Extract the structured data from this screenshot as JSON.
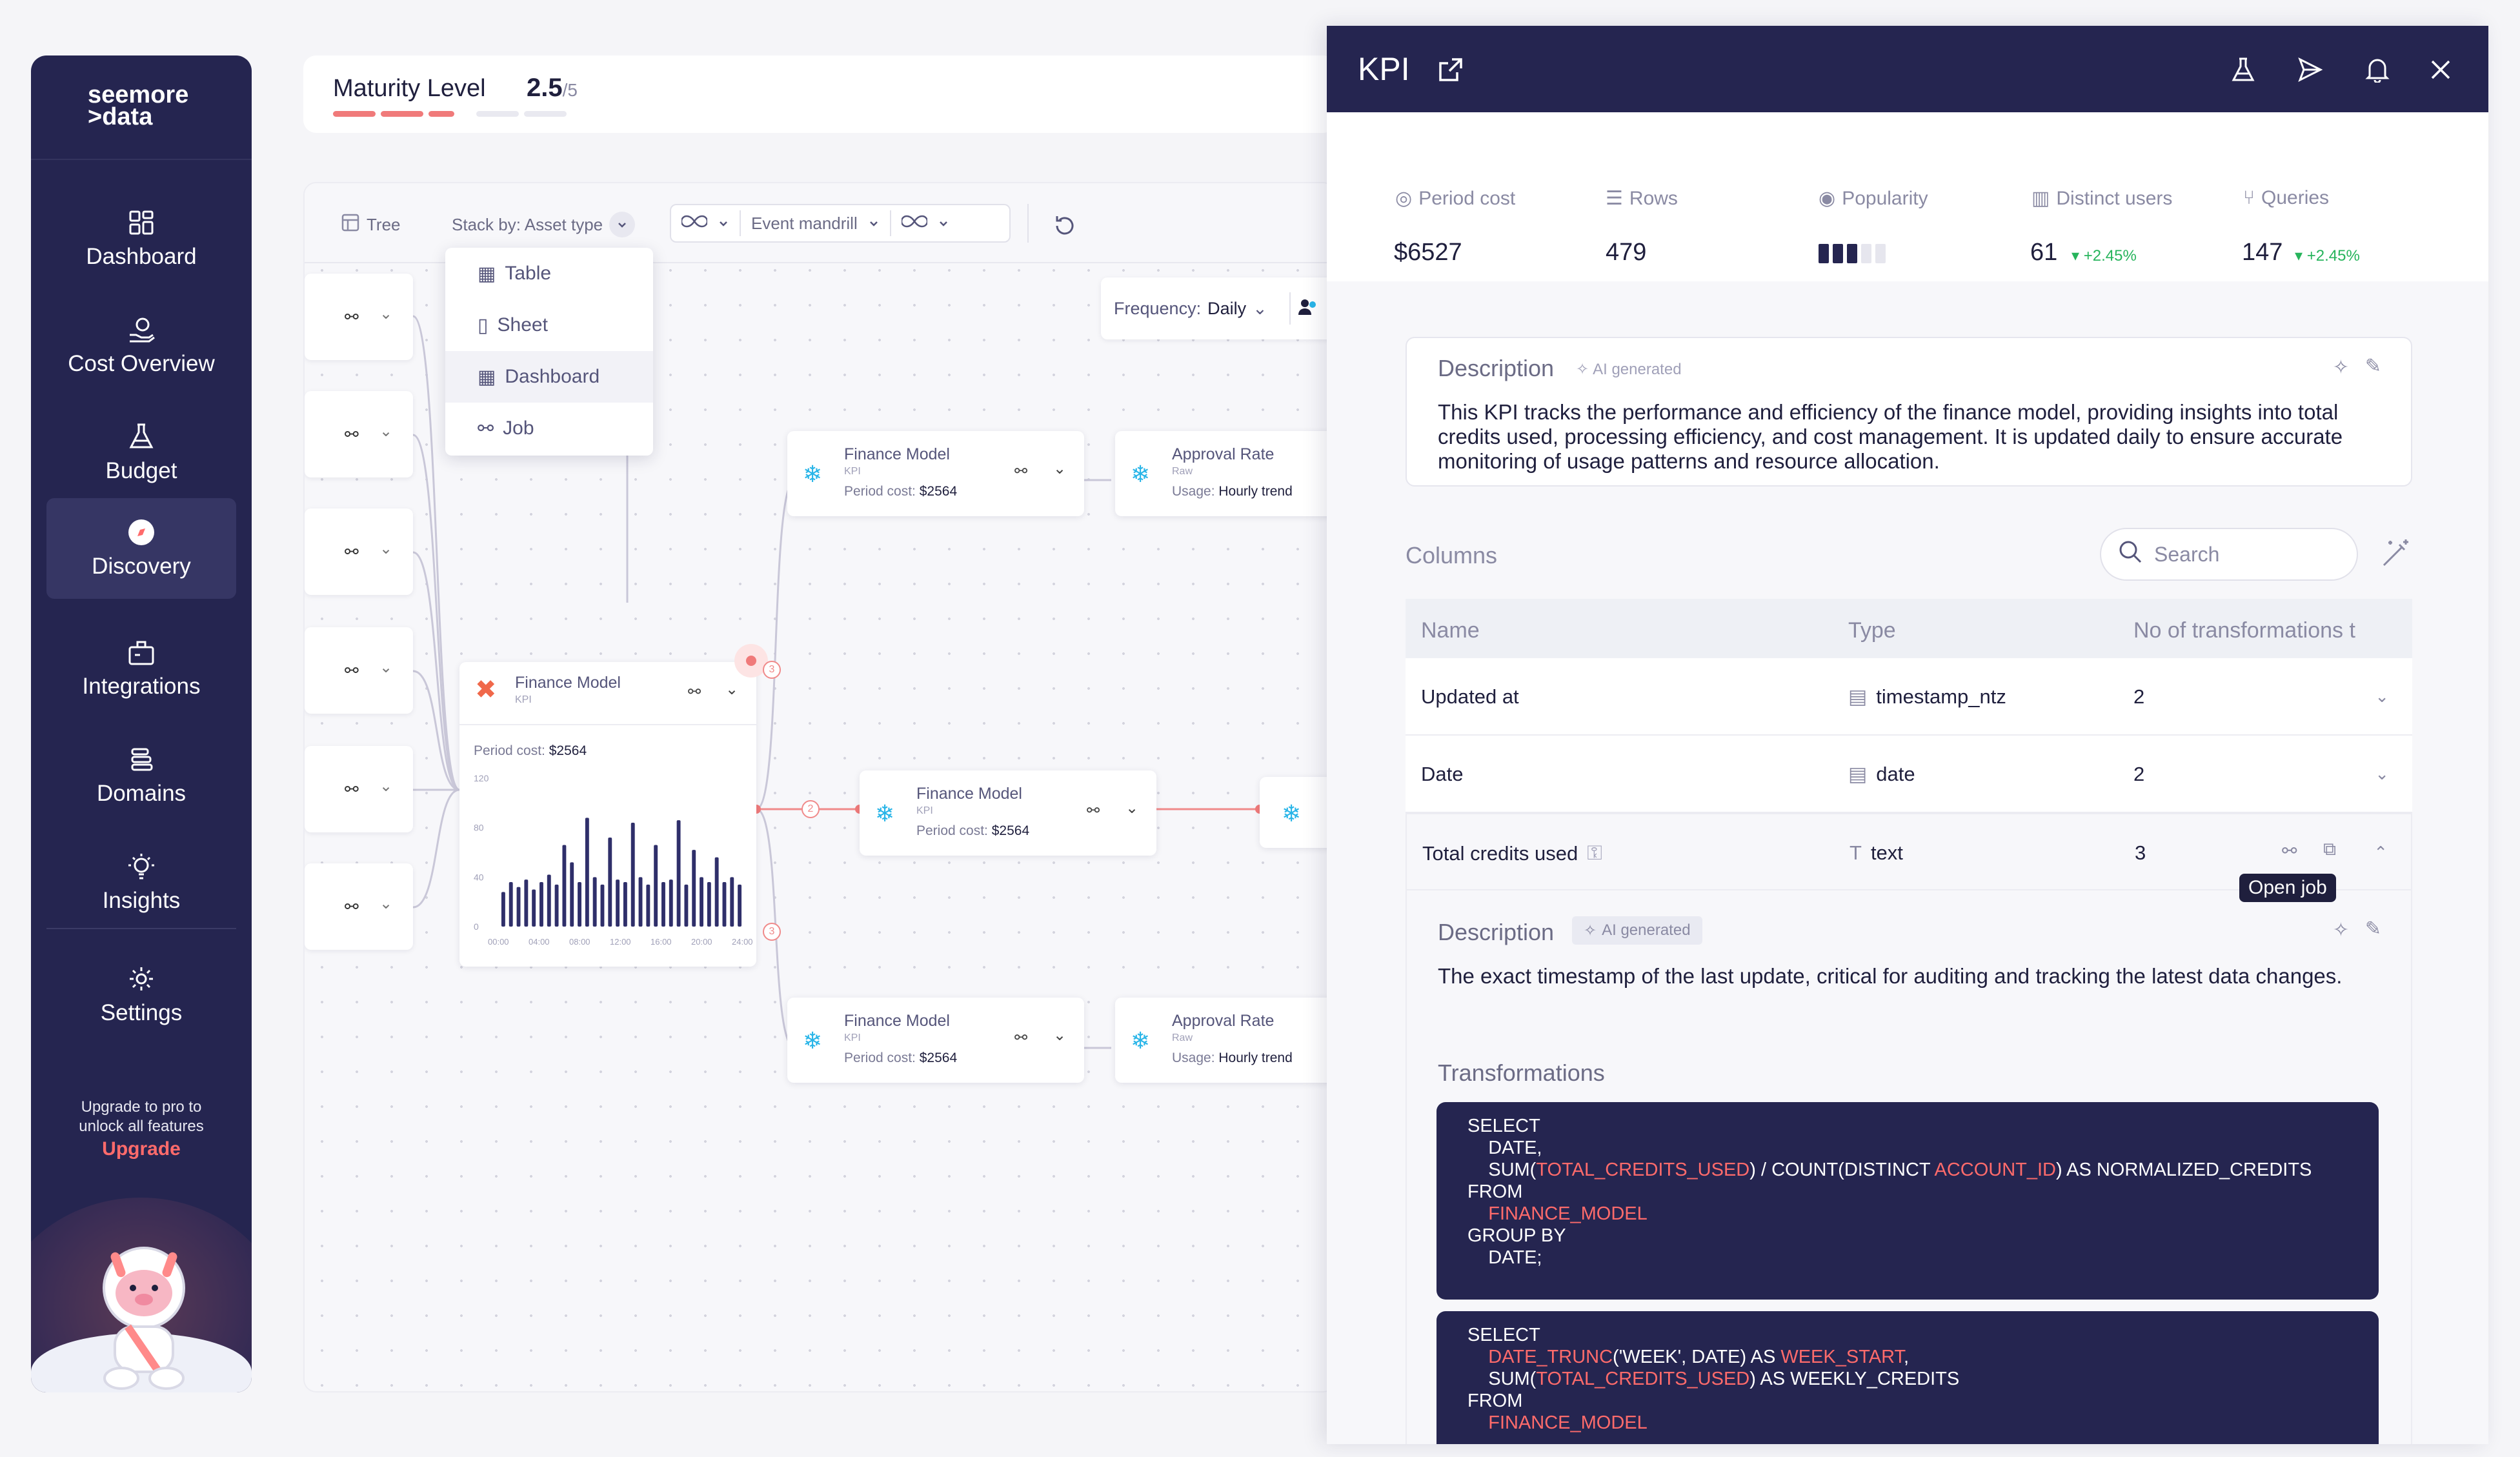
{
  "sidebar": {
    "logo_line1": "seemore",
    "logo_line2": ">data",
    "items": [
      {
        "label": "Dashboard"
      },
      {
        "label": "Cost Overview"
      },
      {
        "label": "Budget"
      },
      {
        "label": "Discovery"
      },
      {
        "label": "Integrations"
      },
      {
        "label": "Domains"
      },
      {
        "label": "Insights"
      },
      {
        "label": "Settings"
      }
    ],
    "active": "Discovery",
    "upgrade_line1": "Upgrade to pro to",
    "upgrade_line2": "unlock all features",
    "upgrade_link": "Upgrade"
  },
  "maturity": {
    "label": "Maturity Level",
    "value": "2.5",
    "max": "/5",
    "level_fraction": 0.5
  },
  "toolbar": {
    "tree": "Tree",
    "stack_by": "Stack by: Asset type",
    "event": "Event mandrill"
  },
  "dropdown": {
    "items": [
      "Table",
      "Sheet",
      "Dashboard",
      "Job"
    ],
    "hovered": "Dashboard"
  },
  "frequency": {
    "label": "Frequency:",
    "value": "Daily"
  },
  "nodes": {
    "fm_top": {
      "title": "Finance Model",
      "sub": "KPI",
      "meta_label": "Period cost:",
      "meta_value": "$2564"
    },
    "ar_top": {
      "title": "Approval Rate",
      "sub": "Raw",
      "meta_label": "Usage:",
      "meta_value": "Hourly trend"
    },
    "fm_main": {
      "title": "Finance Model",
      "sub": "KPI",
      "meta_label": "Period cost:",
      "meta_value": "$2564"
    },
    "fm_mid": {
      "title": "Finance Model",
      "sub": "KPI",
      "meta_label": "Period cost:",
      "meta_value": "$2564"
    },
    "fm_bot": {
      "title": "Finance Model",
      "sub": "KPI",
      "meta_label": "Period cost:",
      "meta_value": "$2564"
    },
    "ar_bot": {
      "title": "Approval Rate",
      "sub": "Raw",
      "meta_label": "Usage:",
      "meta_value": "Hourly trend"
    }
  },
  "badges": [
    "3",
    "2",
    "3"
  ],
  "mini_chart": {
    "type": "bar",
    "y_ticks": [
      "120",
      "80",
      "40",
      "0"
    ],
    "x_ticks": [
      "00:00",
      "04:00",
      "08:00",
      "12:00",
      "16:00",
      "20:00",
      "24:00"
    ],
    "ylim": [
      0,
      120
    ],
    "values": [
      28,
      36,
      32,
      38,
      30,
      36,
      42,
      34,
      66,
      52,
      36,
      88,
      40,
      34,
      72,
      38,
      36,
      84,
      40,
      34,
      66,
      36,
      38,
      86,
      34,
      62,
      40,
      36,
      56,
      36,
      40,
      34
    ]
  },
  "panel": {
    "title": "KPI",
    "stats": [
      {
        "label": "Period cost",
        "value": "$6527",
        "icon": "dollar-icon"
      },
      {
        "label": "Rows",
        "value": "479",
        "icon": "rows-icon"
      },
      {
        "label": "Popularity",
        "value": "",
        "icon": "eye-icon",
        "level_fraction": 0.6
      },
      {
        "label": "Distinct users",
        "value": "61",
        "trend": "+2.45%",
        "icon": "users-icon"
      },
      {
        "label": "Queries",
        "value": "147",
        "trend": "+2.45%",
        "icon": "queries-icon"
      }
    ],
    "description_title": "Description",
    "ai_tag": "AI generated",
    "description": "This KPI tracks the performance and efficiency of the finance model, providing insights into total credits used, processing efficiency, and cost management. It is updated daily to ensure accurate monitoring of usage patterns and resource allocation.",
    "columns_title": "Columns",
    "search_placeholder": "Search",
    "table_headers": [
      "Name",
      "Type",
      "No of transformations t"
    ],
    "rows": [
      {
        "name": "Updated at",
        "type": "timestamp_ntz",
        "count": "2"
      },
      {
        "name": "Date",
        "type": "date",
        "count": "2"
      },
      {
        "name": "Total credits used",
        "type": "text",
        "count": "3"
      }
    ],
    "tooltip": "Open job",
    "expanded": {
      "description_title": "Description",
      "ai_tag": "AI generated",
      "description": "The exact timestamp of the last update, critical for auditing and tracking the latest data changes.",
      "transformations_title": "Transformations"
    },
    "code1": {
      "l1": "SELECT",
      "l2": "    DATE,",
      "l3a": "    SUM(",
      "l3b": "TOTAL_CREDITS_USED",
      "l3c": ") / COUNT(DISTINCT ",
      "l3d": "ACCOUNT_ID",
      "l3e": ") AS NORMALIZED_CREDITS",
      "l4": "FROM",
      "l5": "    FINANCE_MODEL",
      "l6": "GROUP BY",
      "l7": "    DATE;"
    },
    "code2": {
      "l1": "SELECT",
      "l2a": "    DATE_TRUNC",
      "l2b": "('WEEK', DATE) AS ",
      "l2c": "WEEK_START",
      "l2d": ",",
      "l3a": "    SUM(",
      "l3b": "TOTAL_CREDITS_USED",
      "l3c": ") AS WEEKLY_CREDITS",
      "l4": "FROM",
      "l5": "    FINANCE_MODEL"
    }
  },
  "colors": {
    "navy": "#252550",
    "accent": "#ff6b6b",
    "trend_green": "#27b45c",
    "snowflake": "#29b5e8"
  }
}
